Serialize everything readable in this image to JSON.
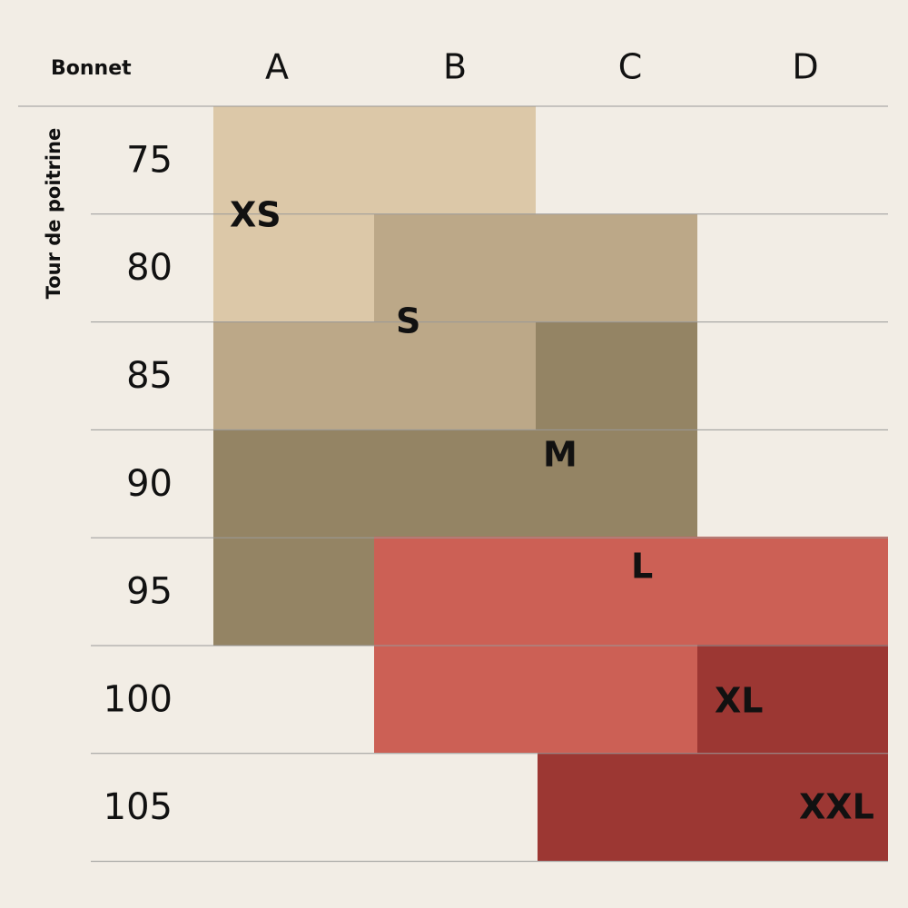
{
  "header": {
    "corner": "Bonnet",
    "columns": [
      "A",
      "B",
      "C",
      "D"
    ]
  },
  "row_axis_label": "Tour de poitrine",
  "rows": [
    75,
    80,
    85,
    90,
    95,
    100,
    105
  ],
  "sizes": [
    {
      "label": "XS"
    },
    {
      "label": "S"
    },
    {
      "label": "M"
    },
    {
      "label": "L"
    },
    {
      "label": "XL"
    },
    {
      "label": "XXL"
    }
  ]
}
